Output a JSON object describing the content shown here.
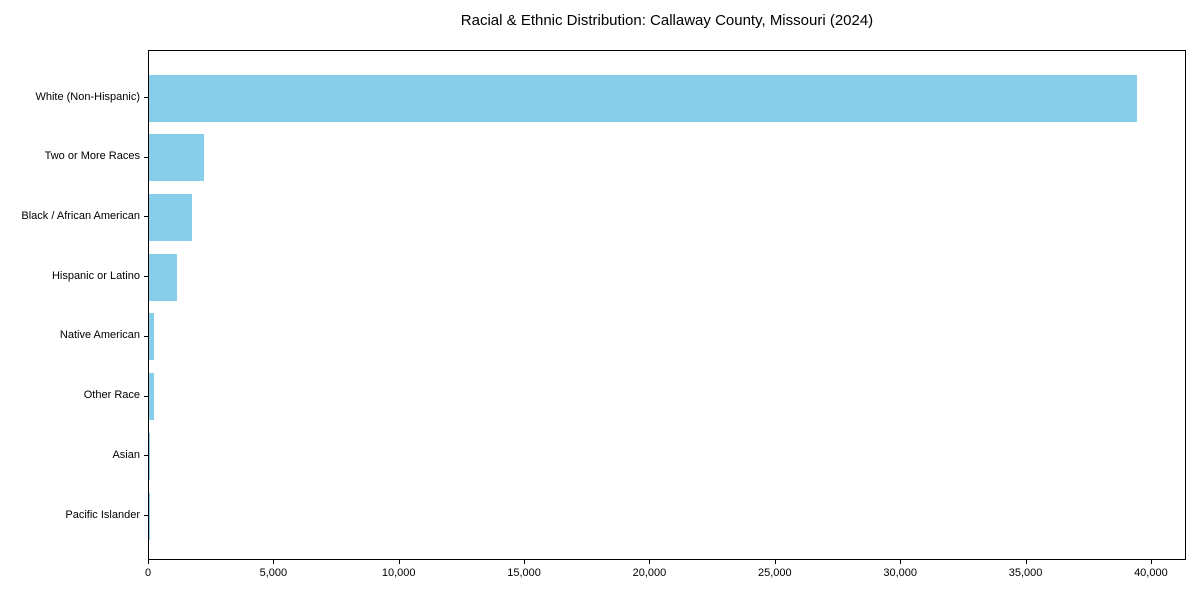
{
  "page": {
    "background_color": "#ffffff"
  },
  "chart_data": {
    "type": "bar",
    "orientation": "horizontal",
    "title": "Racial & Ethnic Distribution: Callaway County, Missouri (2024)",
    "categories": [
      "White (Non-Hispanic)",
      "Two or More Races",
      "Black / African American",
      "Hispanic or Latino",
      "Native American",
      "Other Race",
      "Asian",
      "Pacific Islander"
    ],
    "values": [
      39400,
      2200,
      1700,
      1100,
      190,
      180,
      30,
      10
    ],
    "bar_color": "#87CEEB",
    "axis_color": "#000000",
    "text_color": "#000000",
    "xlabel": "",
    "ylabel": "",
    "xlim": [
      0,
      41400
    ],
    "xticks": [
      0,
      5000,
      10000,
      15000,
      20000,
      25000,
      30000,
      35000,
      40000
    ],
    "xtick_labels": [
      "0",
      "5,000",
      "10,000",
      "15,000",
      "20,000",
      "25,000",
      "30,000",
      "35,000",
      "40,000"
    ],
    "grid": false,
    "legend": "none"
  }
}
